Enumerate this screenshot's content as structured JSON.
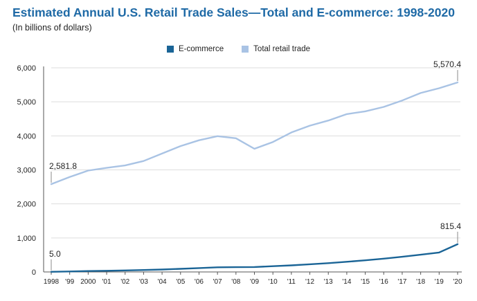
{
  "header": {
    "title": "Estimated Annual U.S. Retail Trade Sales—Total and E-commerce: 1998-2020",
    "subtitle": "(In billions of dollars)"
  },
  "colors": {
    "ecommerce": "#1a6496",
    "total": "#a9c3e4",
    "title": "#1f6aa6",
    "grid": "#dddddd",
    "axis": "#555555"
  },
  "chart_data": {
    "type": "line",
    "title": "Estimated Annual U.S. Retail Trade Sales—Total and E-commerce: 1998-2020",
    "subtitle": "(In billions of dollars)",
    "xlabel": "",
    "ylabel": "",
    "ylim": [
      0,
      6000
    ],
    "yticks": [
      0,
      1000,
      2000,
      3000,
      4000,
      5000,
      6000
    ],
    "ytick_labels": [
      "0",
      "1,000",
      "2,000",
      "3,000",
      "4,000",
      "5,000",
      "6,000"
    ],
    "categories": [
      "1998",
      "'99",
      "2000",
      "'01",
      "'02",
      "'03",
      "'04",
      "'05",
      "'06",
      "'07",
      "'08",
      "'09",
      "'10",
      "'11",
      "'12",
      "'13",
      "'14",
      "'15",
      "'16",
      "'17",
      "'18",
      "'19",
      "'20"
    ],
    "grid": true,
    "legend_position": "top-center",
    "series": [
      {
        "name": "E-commerce",
        "values": [
          5.0,
          15,
          27,
          34,
          45,
          57,
          72,
          92,
          114,
          137,
          141,
          145,
          169,
          194,
          226,
          258,
          298,
          341,
          390,
          446,
          507,
          571,
          815.4
        ]
      },
      {
        "name": "Total retail trade",
        "values": [
          2581.8,
          2790,
          2980,
          3060,
          3130,
          3260,
          3480,
          3700,
          3870,
          3990,
          3930,
          3620,
          3820,
          4100,
          4300,
          4450,
          4640,
          4720,
          4850,
          5040,
          5260,
          5400,
          5570.4
        ]
      }
    ],
    "annotations": [
      {
        "series": "Total retail trade",
        "index": 0,
        "text": "2,581.8"
      },
      {
        "series": "Total retail trade",
        "index": 22,
        "text": "5,570.4"
      },
      {
        "series": "E-commerce",
        "index": 0,
        "text": "5.0"
      },
      {
        "series": "E-commerce",
        "index": 22,
        "text": "815.4"
      }
    ]
  }
}
